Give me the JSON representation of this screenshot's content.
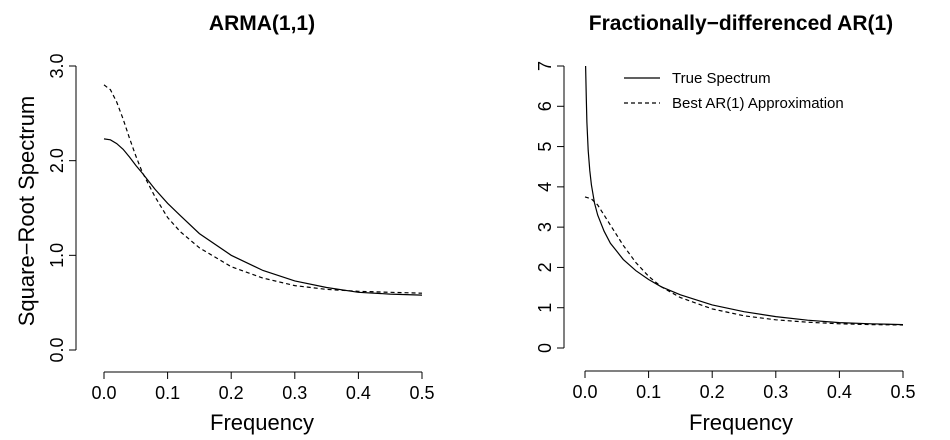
{
  "chart_data": [
    {
      "type": "line",
      "title": "ARMA(1,1)",
      "xlabel": "Frequency",
      "ylabel": "Square−Root Spectrum",
      "xlim": [
        0,
        0.5
      ],
      "ylim": [
        0,
        3.0
      ],
      "xticks": [
        0.0,
        0.1,
        0.2,
        0.3,
        0.4,
        0.5
      ],
      "xtick_labels": [
        "0.0",
        "0.1",
        "0.2",
        "0.3",
        "0.4",
        "0.5"
      ],
      "yticks": [
        0.0,
        1.0,
        2.0,
        3.0
      ],
      "ytick_labels": [
        "0.0",
        "1.0",
        "2.0",
        "3.0"
      ],
      "grid": false,
      "series": [
        {
          "style": "solid",
          "x": [
            0.0,
            0.01,
            0.02,
            0.03,
            0.04,
            0.05,
            0.06,
            0.08,
            0.1,
            0.12,
            0.15,
            0.2,
            0.25,
            0.3,
            0.35,
            0.4,
            0.45,
            0.5
          ],
          "y": [
            2.23,
            2.22,
            2.18,
            2.12,
            2.04,
            1.95,
            1.87,
            1.7,
            1.55,
            1.42,
            1.23,
            1.0,
            0.84,
            0.73,
            0.66,
            0.61,
            0.59,
            0.58
          ]
        },
        {
          "style": "dashed",
          "x": [
            0.0,
            0.01,
            0.02,
            0.03,
            0.04,
            0.05,
            0.06,
            0.08,
            0.1,
            0.12,
            0.15,
            0.2,
            0.25,
            0.3,
            0.35,
            0.4,
            0.45,
            0.5
          ],
          "y": [
            2.8,
            2.75,
            2.62,
            2.44,
            2.24,
            2.05,
            1.88,
            1.62,
            1.4,
            1.25,
            1.08,
            0.88,
            0.76,
            0.68,
            0.64,
            0.62,
            0.61,
            0.6
          ]
        }
      ]
    },
    {
      "type": "line",
      "title": "Fractionally−differenced AR(1)",
      "xlabel": "Frequency",
      "ylabel": "",
      "xlim": [
        0,
        0.5
      ],
      "ylim": [
        0,
        7
      ],
      "xticks": [
        0.0,
        0.1,
        0.2,
        0.3,
        0.4,
        0.5
      ],
      "xtick_labels": [
        "0.0",
        "0.1",
        "0.2",
        "0.3",
        "0.4",
        "0.5"
      ],
      "yticks": [
        0,
        1,
        2,
        3,
        4,
        5,
        6,
        7
      ],
      "ytick_labels": [
        "0",
        "1",
        "2",
        "3",
        "4",
        "5",
        "6",
        "7"
      ],
      "grid": false,
      "legend": {
        "position": "top-right"
      },
      "series": [
        {
          "name": "True Spectrum",
          "style": "solid",
          "x": [
            0.001,
            0.002,
            0.003,
            0.005,
            0.0075,
            0.01,
            0.015,
            0.02,
            0.03,
            0.04,
            0.05,
            0.06,
            0.08,
            0.1,
            0.12,
            0.15,
            0.2,
            0.25,
            0.3,
            0.35,
            0.4,
            0.45,
            0.5
          ],
          "y": [
            7.0,
            6.2,
            5.6,
            4.9,
            4.4,
            4.05,
            3.6,
            3.3,
            2.9,
            2.6,
            2.4,
            2.2,
            1.92,
            1.7,
            1.52,
            1.32,
            1.07,
            0.9,
            0.78,
            0.69,
            0.63,
            0.6,
            0.58
          ]
        },
        {
          "name": "Best AR(1) Approximation",
          "style": "dashed",
          "x": [
            0.0,
            0.01,
            0.02,
            0.03,
            0.04,
            0.05,
            0.06,
            0.08,
            0.1,
            0.12,
            0.15,
            0.2,
            0.25,
            0.3,
            0.35,
            0.4,
            0.45,
            0.5
          ],
          "y": [
            3.75,
            3.7,
            3.55,
            3.3,
            3.05,
            2.8,
            2.55,
            2.12,
            1.78,
            1.52,
            1.25,
            0.97,
            0.8,
            0.7,
            0.64,
            0.6,
            0.58,
            0.57
          ]
        }
      ]
    }
  ]
}
